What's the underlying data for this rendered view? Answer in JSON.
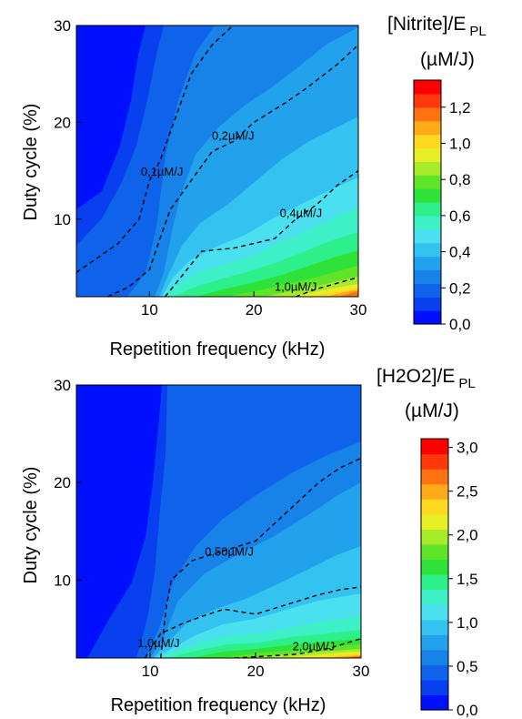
{
  "chart_data": [
    {
      "type": "heatmap",
      "subtype": "filled-contour",
      "xlabel": "Repetition frequency (kHz)",
      "ylabel": "Duty cycle (%)",
      "xlim": [
        3,
        30
      ],
      "ylim": [
        2,
        30
      ],
      "x_ticks": [
        "10",
        "20",
        "30"
      ],
      "y_ticks": [
        "10",
        "20",
        "30"
      ],
      "colorbar": {
        "title": "[Nitrite]/E",
        "title_sub": "PL",
        "unit": "(µM/J)",
        "range": [
          0,
          1.35
        ],
        "ticks": [
          "1,2",
          "1,0",
          "0,8",
          "0,6",
          "0,4",
          "0,2",
          "0,0"
        ],
        "tick_values": [
          1.2,
          1.0,
          0.8,
          0.6,
          0.4,
          0.2,
          0.0
        ]
      },
      "contours": [
        {
          "label": "0,1µM/J",
          "level": 0.1,
          "label_at": [
            11.2,
            14.5
          ],
          "points": [
            [
              3,
              4.5
            ],
            [
              5,
              6
            ],
            [
              7,
              7.5
            ],
            [
              9,
              10
            ],
            [
              10,
              14
            ],
            [
              11,
              16
            ],
            [
              13,
              22
            ],
            [
              14,
              25
            ],
            [
              16,
              28
            ],
            [
              18,
              30
            ]
          ]
        },
        {
          "label": "0,2µM/J",
          "level": 0.2,
          "label_at": [
            18,
            18.2
          ],
          "points": [
            [
              6,
              2
            ],
            [
              8,
              3
            ],
            [
              10,
              4.8
            ],
            [
              11,
              8
            ],
            [
              12,
              11
            ],
            [
              14,
              14
            ],
            [
              16,
              17
            ],
            [
              18,
              18
            ],
            [
              20,
              20
            ],
            [
              23,
              22
            ],
            [
              25,
              23.5
            ],
            [
              28,
              26
            ],
            [
              30,
              28
            ]
          ]
        },
        {
          "label": "0,4µM/J",
          "level": 0.4,
          "label_at": [
            24.5,
            10.2
          ],
          "points": [
            [
              11.5,
              2
            ],
            [
              13,
              4
            ],
            [
              15,
              6.7
            ],
            [
              18,
              7
            ],
            [
              20,
              7.5
            ],
            [
              22,
              8
            ],
            [
              24,
              10
            ],
            [
              26,
              11.5
            ],
            [
              28,
              13.5
            ],
            [
              30,
              15
            ]
          ]
        },
        {
          "label": "1,0µM/J",
          "level": 1.0,
          "label_at": [
            24,
            2.6
          ],
          "points": [
            [
              24,
              2
            ],
            [
              26,
              2.8
            ],
            [
              28,
              3.4
            ],
            [
              30,
              4
            ]
          ]
        }
      ]
    },
    {
      "type": "heatmap",
      "subtype": "filled-contour",
      "xlabel": "Repetition frequency (kHz)",
      "ylabel": "Duty cycle (%)",
      "xlim": [
        3,
        30
      ],
      "ylim": [
        2,
        30
      ],
      "x_ticks": [
        "10",
        "20",
        "30"
      ],
      "y_ticks": [
        "10",
        "20",
        "30"
      ],
      "colorbar": {
        "title": "[H2O2]/E",
        "title_sub": "PL",
        "unit": "(µM/J)",
        "range": [
          0,
          3.1
        ],
        "ticks": [
          "3,0",
          "2,5",
          "2,0",
          "1,5",
          "1,0",
          "0,5",
          "0,0"
        ],
        "tick_values": [
          3.0,
          2.5,
          2.0,
          1.5,
          1.0,
          0.5,
          0.0
        ]
      },
      "contours": [
        {
          "label": "0,50µM/J",
          "level": 0.5,
          "label_at": [
            17.5,
            12.5
          ],
          "points": [
            [
              11,
              2
            ],
            [
              11.5,
              7
            ],
            [
              12,
              10
            ],
            [
              14,
              12
            ],
            [
              17,
              13
            ],
            [
              20,
              14
            ],
            [
              22,
              16
            ],
            [
              24,
              18
            ],
            [
              26,
              20
            ],
            [
              28,
              21.5
            ],
            [
              30,
              22.5
            ]
          ]
        },
        {
          "label": "1,0µM/J",
          "level": 1.0,
          "label_at": [
            10.8,
            3.1
          ],
          "points": [
            [
              9.5,
              2
            ],
            [
              11,
              4.5
            ],
            [
              13,
              5.5
            ],
            [
              15,
              6.3
            ],
            [
              17,
              7
            ],
            [
              20,
              6.5
            ],
            [
              23,
              7.5
            ],
            [
              26,
              8.5
            ],
            [
              28,
              9
            ],
            [
              30,
              9.3
            ]
          ]
        },
        {
          "label": "2,0µM/J",
          "level": 2.0,
          "label_at": [
            25.5,
            2.8
          ],
          "points": [
            [
              18,
              2
            ],
            [
              21,
              2.2
            ],
            [
              24,
              2.4
            ],
            [
              27,
              3
            ],
            [
              30,
              4
            ]
          ]
        }
      ]
    }
  ],
  "colors": {
    "scale": [
      "#0010ff",
      "#0840f0",
      "#0f63ea",
      "#1782e8",
      "#22a2ec",
      "#34c2f0",
      "#4ae0f0",
      "#3ef0c8",
      "#2ef08a",
      "#2ee23a",
      "#5fe42a",
      "#a6ec2a",
      "#e8ee24",
      "#ffd820",
      "#ffaa18",
      "#ff7212",
      "#ff380c",
      "#ff0000"
    ]
  }
}
